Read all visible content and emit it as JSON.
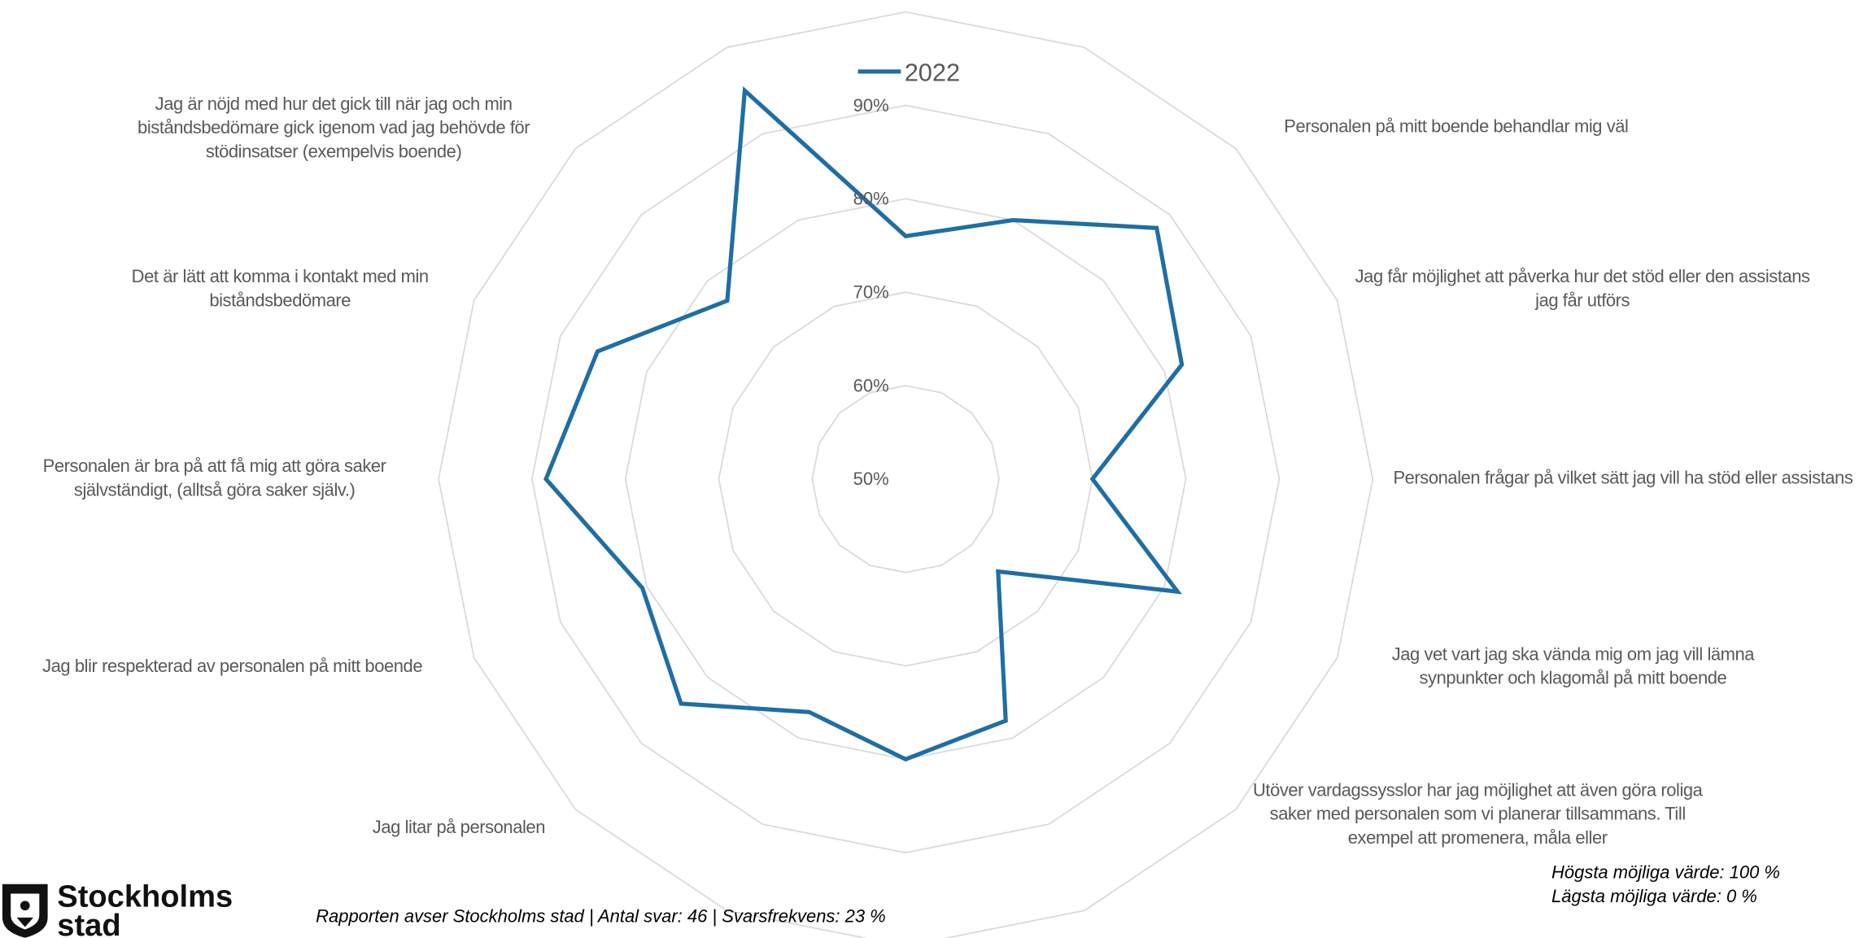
{
  "chart_data": {
    "type": "radar",
    "categories": [
      null,
      null,
      "Personalen på mitt boende behandlar mig väl",
      "Jag får möjlighet att påverka hur det stöd eller den assistans jag får utförs",
      "Personalen frågar på vilket sätt jag vill ha stöd eller assistans",
      "Jag vet vart jag ska vända mig om jag vill lämna synpunkter och klagomål på mitt boende",
      "Utöver vardagssysslor har jag möjlighet att även göra roliga saker med personalen som vi planerar tillsammans. Till exempel att promenera, måla eller",
      null,
      null,
      null,
      "Jag litar på personalen",
      "Jag blir respekterad av personalen på mitt boende",
      "Personalen är bra på att få mig att göra saker självständigt, (alltså göra saker själv.)",
      "Det är lätt att komma i kontakt med min biståndsbedömare",
      "Jag är nöjd med hur det gick till när jag och min biståndsbedömare gick igenom vad jag behövde för stödinsatser (exempelvis boende)",
      null
    ],
    "series": [
      {
        "name": "2022",
        "color": "#1f6ea5",
        "values": [
          76,
          80,
          88,
          82,
          70,
          81.5,
          64,
          78,
          80,
          77,
          84,
          80.5,
          88.5,
          85.7,
          77,
          95
        ]
      }
    ],
    "ylim": [
      50,
      100
    ],
    "yticks": [
      {
        "value": 50,
        "label": "50%"
      },
      {
        "value": 60,
        "label": "60%"
      },
      {
        "value": 70,
        "label": "70%"
      },
      {
        "value": 80,
        "label": "80%"
      },
      {
        "value": 90,
        "label": "90%"
      }
    ],
    "grid": true,
    "legend": "top"
  },
  "footer": {
    "report": "Rapporten avser Stockholms stad | Antal svar: 46 | Svarsfrekvens: 23 %",
    "max_note": "Högsta möjliga värde: 100 %",
    "min_note": "Lägsta möjliga värde: 0 %"
  },
  "logo": {
    "line1": "Stockholms",
    "line2": "stad"
  }
}
